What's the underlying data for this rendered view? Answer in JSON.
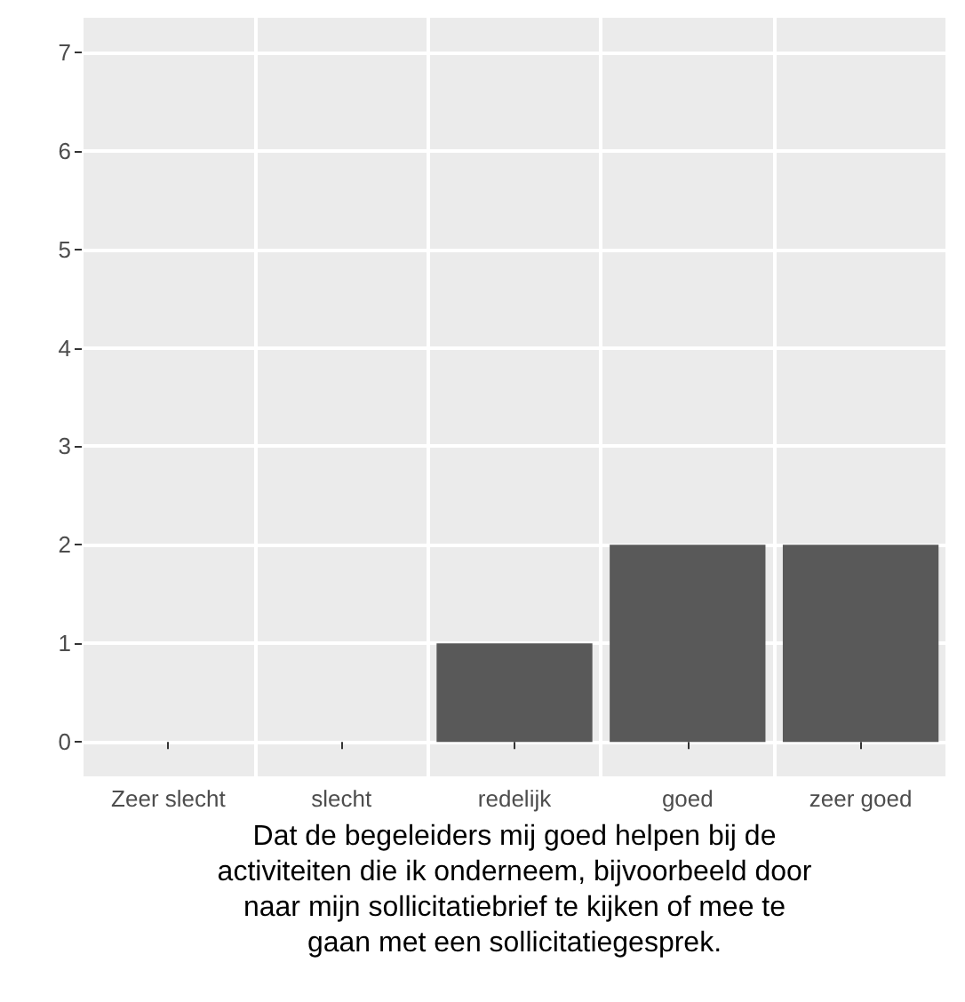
{
  "chart_data": {
    "type": "bar",
    "xlabel": "Dat de begeleiders mij goed helpen bij de\nactiviteiten die ik onderneem, bijvoorbeeld door\nnaar mijn sollicitatiebrief te kijken of mee te\ngaan met een sollicitatiegesprek.",
    "categories": [
      "Zeer slecht",
      "slecht",
      "redelijk",
      "goed",
      "zeer goed"
    ],
    "values": [
      0,
      0,
      1,
      2,
      2
    ],
    "color": "#595959",
    "ylim": [
      -0.35,
      7.35
    ],
    "yticks": [
      0,
      1,
      2,
      3,
      4,
      5,
      6,
      7
    ],
    "grid": true
  }
}
